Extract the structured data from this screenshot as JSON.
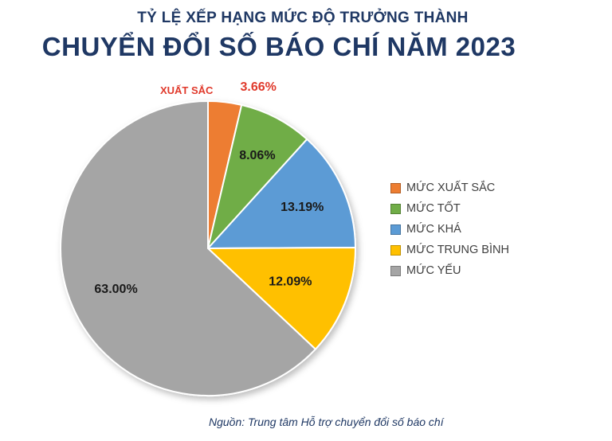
{
  "header": {
    "subtitle": "TỶ LỆ XẾP HẠNG MỨC ĐỘ TRƯỞNG THÀNH",
    "title": "CHUYỂN ĐỔI SỐ BÁO CHÍ NĂM 2023"
  },
  "source": "Nguồn: Trung tâm Hỗ trợ chuyển đổi số báo chí",
  "chart_data": {
    "type": "pie",
    "title": "CHUYỂN ĐỔI SỐ BÁO CHÍ NĂM 2023",
    "subtitle": "TỶ LỆ XẾP HẠNG MỨC ĐỘ TRƯỞNG THÀNH",
    "legend_position": "right",
    "categories": [
      "MỨC XUẤT SẮC",
      "MỨC TỐT",
      "MỨC KHÁ",
      "MỨC TRUNG BÌNH",
      "MỨC YẾU"
    ],
    "values": [
      3.66,
      8.06,
      13.19,
      12.09,
      63.0
    ],
    "labels": [
      "3.66%",
      "8.06%",
      "13.19%",
      "12.09%",
      "63.00%"
    ],
    "colors": [
      "#ed7d31",
      "#70ad47",
      "#5b9bd5",
      "#ffc000",
      "#a5a5a5"
    ],
    "annotation": "XUẤT SẮC",
    "annotation_color": "#e0392b"
  }
}
